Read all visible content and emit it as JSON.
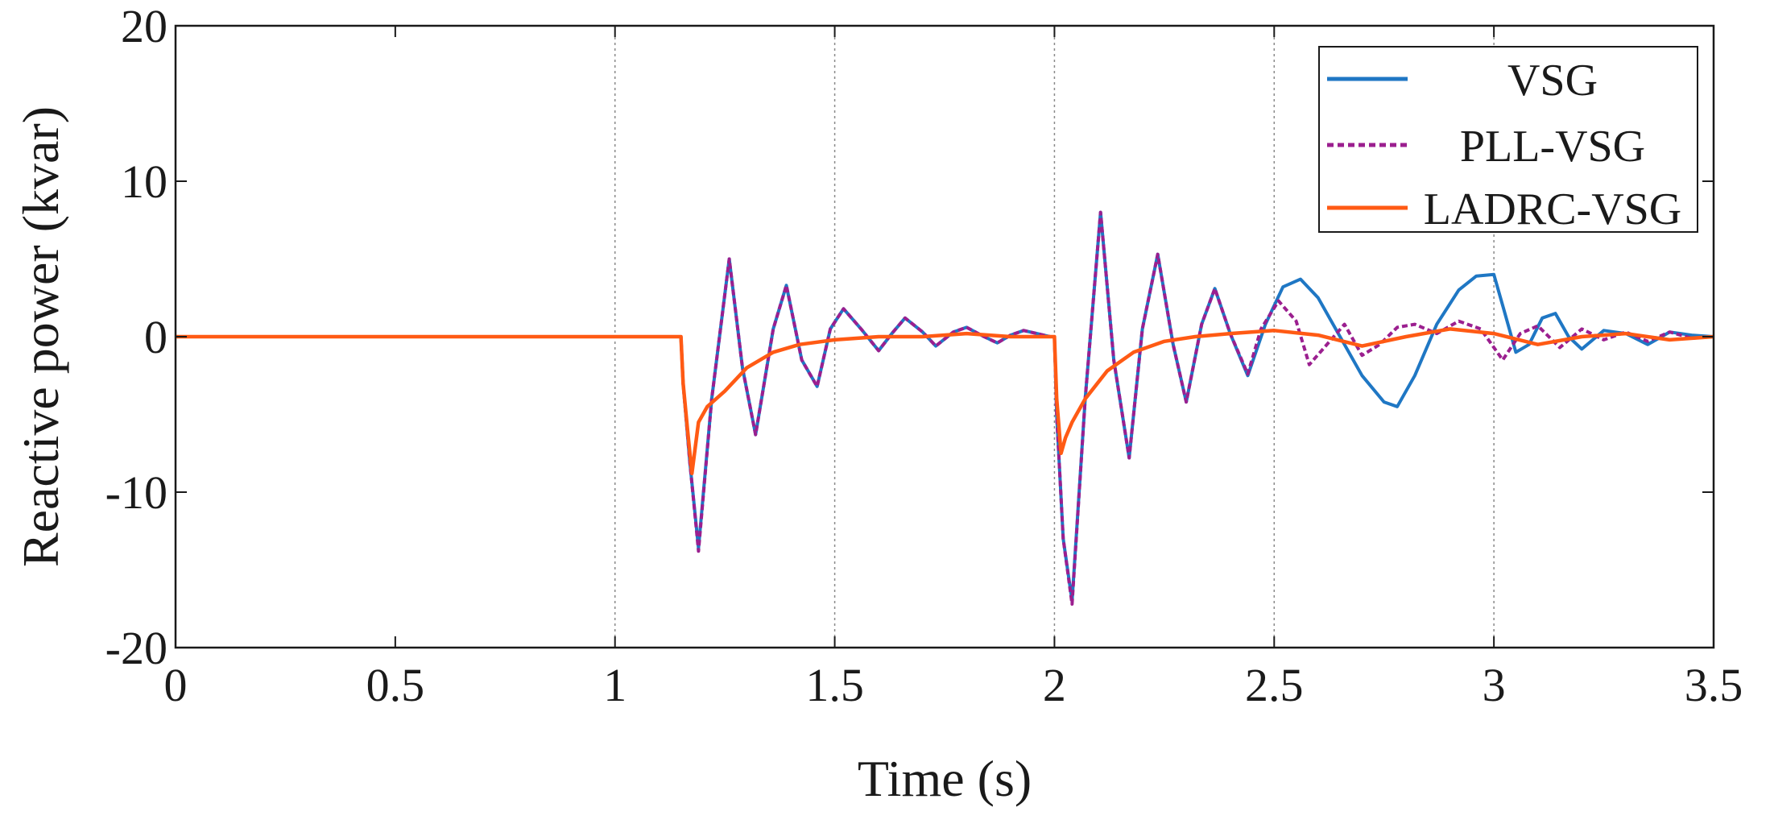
{
  "chart_data": {
    "type": "line",
    "xlabel": "Time (s)",
    "ylabel": "Reactive power (kvar)",
    "xlim": [
      0,
      3.5
    ],
    "ylim": [
      -20,
      20
    ],
    "xticks": [
      0,
      0.5,
      1,
      1.5,
      2,
      2.5,
      3,
      3.5
    ],
    "xtick_labels": [
      "0",
      "0.5",
      "1",
      "1.5",
      "2",
      "2.5",
      "3",
      "3.5"
    ],
    "yticks": [
      -20,
      -10,
      0,
      10,
      20
    ],
    "ytick_labels": [
      "-20",
      "-10",
      "0",
      "10",
      "20"
    ],
    "vertical_gridlines_at": [
      1,
      1.5,
      2,
      2.5,
      3
    ],
    "legend_position": "top-right",
    "series": [
      {
        "name": "VSG",
        "color": "#1f77c4",
        "style": "solid",
        "x": [
          0,
          1.15,
          1.155,
          1.17,
          1.19,
          1.22,
          1.26,
          1.29,
          1.32,
          1.36,
          1.39,
          1.425,
          1.46,
          1.49,
          1.52,
          1.56,
          1.6,
          1.63,
          1.66,
          1.7,
          1.73,
          1.77,
          1.8,
          1.84,
          1.87,
          1.9,
          1.93,
          1.96,
          1.99,
          2.0,
          2.005,
          2.02,
          2.04,
          2.07,
          2.105,
          2.135,
          2.17,
          2.2,
          2.235,
          2.27,
          2.3,
          2.335,
          2.365,
          2.4,
          2.44,
          2.48,
          2.52,
          2.56,
          2.6,
          2.65,
          2.7,
          2.75,
          2.78,
          2.82,
          2.87,
          2.92,
          2.96,
          3.0,
          3.02,
          3.05,
          3.08,
          3.11,
          3.14,
          3.17,
          3.2,
          3.25,
          3.3,
          3.35,
          3.4,
          3.45,
          3.5
        ],
        "y": [
          0,
          0,
          -3,
          -8,
          -13.6,
          -4,
          5,
          -2,
          -6.3,
          0.5,
          3.3,
          -1.5,
          -3.2,
          0.5,
          1.8,
          0.5,
          -0.9,
          0.2,
          1.2,
          0.3,
          -0.6,
          0.3,
          0.6,
          0,
          -0.4,
          0.1,
          0.4,
          0.2,
          0,
          0,
          -5,
          -13,
          -17,
          -4,
          8,
          -1.5,
          -7.8,
          0.5,
          5.3,
          -0.5,
          -4.2,
          0.8,
          3.1,
          0.2,
          -2.5,
          0.8,
          3.2,
          3.7,
          2.5,
          0,
          -2.5,
          -4.2,
          -4.5,
          -2.5,
          0.8,
          3,
          3.9,
          4,
          2,
          -1,
          -0.5,
          1.2,
          1.5,
          0,
          -0.8,
          0.4,
          0.2,
          -0.5,
          0.3,
          0.1,
          0
        ]
      },
      {
        "name": "PLL-VSG",
        "color": "#9b1f8f",
        "style": "dashed",
        "x": [
          0,
          1.15,
          1.155,
          1.17,
          1.19,
          1.22,
          1.26,
          1.29,
          1.32,
          1.36,
          1.39,
          1.425,
          1.46,
          1.49,
          1.52,
          1.56,
          1.6,
          1.63,
          1.66,
          1.7,
          1.73,
          1.77,
          1.8,
          1.84,
          1.87,
          1.9,
          1.93,
          1.96,
          1.99,
          2.0,
          2.005,
          2.02,
          2.04,
          2.07,
          2.105,
          2.135,
          2.17,
          2.2,
          2.235,
          2.27,
          2.3,
          2.335,
          2.365,
          2.4,
          2.44,
          2.47,
          2.51,
          2.55,
          2.58,
          2.62,
          2.66,
          2.7,
          2.74,
          2.78,
          2.82,
          2.87,
          2.92,
          2.97,
          3.02,
          3.06,
          3.1,
          3.15,
          3.2,
          3.25,
          3.3,
          3.35,
          3.4,
          3.45,
          3.5
        ],
        "y": [
          0,
          0,
          -3,
          -8,
          -13.8,
          -4,
          5,
          -2,
          -6.3,
          0.5,
          3.3,
          -1.5,
          -3.2,
          0.5,
          1.8,
          0.5,
          -0.9,
          0.2,
          1.2,
          0.3,
          -0.6,
          0.3,
          0.6,
          0,
          -0.4,
          0.1,
          0.4,
          0.2,
          0,
          0,
          -5,
          -13,
          -17.2,
          -4,
          8,
          -1.5,
          -7.8,
          0.5,
          5.3,
          -0.5,
          -4.2,
          0.8,
          3.1,
          0.2,
          -2.4,
          0.5,
          2.3,
          1,
          -1.8,
          -0.5,
          0.8,
          -1.2,
          -0.5,
          0.6,
          0.8,
          0.2,
          1,
          0.5,
          -1.5,
          0.2,
          0.7,
          -0.7,
          0.5,
          -0.2,
          0.3,
          -0.3,
          0.3,
          -0.1,
          0
        ]
      },
      {
        "name": "LADRC-VSG",
        "color": "#ff5a14",
        "style": "solid",
        "x": [
          0,
          1.15,
          1.155,
          1.165,
          1.175,
          1.19,
          1.21,
          1.25,
          1.3,
          1.36,
          1.42,
          1.5,
          1.6,
          1.7,
          1.8,
          1.9,
          1.99,
          2.0,
          2.005,
          2.015,
          2.025,
          2.04,
          2.07,
          2.12,
          2.18,
          2.25,
          2.32,
          2.4,
          2.5,
          2.6,
          2.7,
          2.8,
          2.9,
          3.0,
          3.1,
          3.2,
          3.3,
          3.4,
          3.5
        ],
        "y": [
          0,
          0,
          -3,
          -6,
          -8.8,
          -5.5,
          -4.5,
          -3.5,
          -2,
          -1,
          -0.5,
          -0.2,
          0,
          0,
          0.2,
          0,
          0,
          0,
          -4,
          -7.5,
          -6.5,
          -5.5,
          -4,
          -2.2,
          -1,
          -0.3,
          0,
          0.2,
          0.4,
          0.1,
          -0.6,
          0,
          0.5,
          0.2,
          -0.5,
          0,
          0.2,
          -0.2,
          0
        ]
      }
    ]
  }
}
